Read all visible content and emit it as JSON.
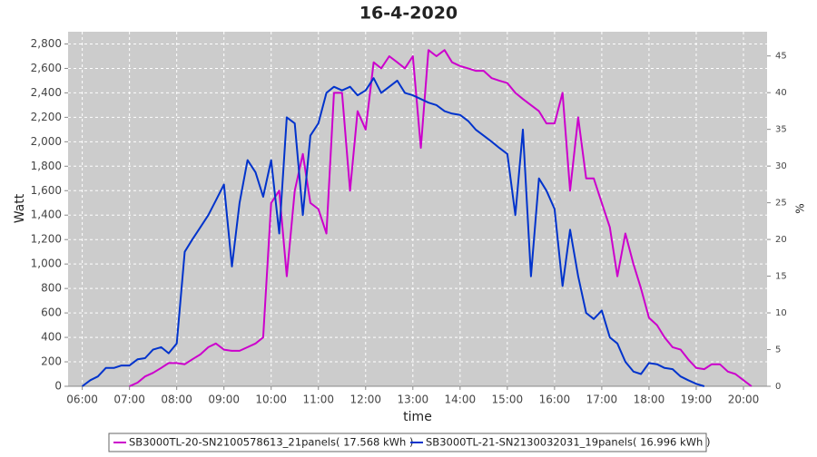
{
  "chart_data": {
    "type": "line",
    "title": "16-4-2020",
    "xlabel": "time",
    "ylabel": "Watt",
    "y2label": "%",
    "x": [
      6,
      6.17,
      6.33,
      6.5,
      6.67,
      6.83,
      7,
      7.17,
      7.33,
      7.5,
      7.67,
      7.83,
      8,
      8.17,
      8.33,
      8.5,
      8.67,
      8.83,
      9,
      9.17,
      9.33,
      9.5,
      9.67,
      9.83,
      10,
      10.17,
      10.33,
      10.5,
      10.67,
      10.83,
      11,
      11.17,
      11.33,
      11.5,
      11.67,
      11.83,
      12,
      12.17,
      12.33,
      12.5,
      12.67,
      12.83,
      13,
      13.17,
      13.33,
      13.5,
      13.67,
      13.83,
      14,
      14.17,
      14.33,
      14.5,
      14.67,
      14.83,
      15,
      15.17,
      15.33,
      15.5,
      15.67,
      15.83,
      16,
      16.17,
      16.33,
      16.5,
      16.67,
      16.83,
      17,
      17.17,
      17.33,
      17.5,
      17.67,
      17.83,
      18,
      18.17,
      18.33,
      18.5,
      18.67,
      18.83,
      19,
      19.17,
      19.33,
      19.5,
      19.67,
      19.83,
      20,
      20.17,
      20.33
    ],
    "series": [
      {
        "name": "SB3000TL-20-SN2100578613_21panels( 17.568 kWh )",
        "color": "#cc00cc",
        "values": [
          null,
          null,
          null,
          null,
          null,
          null,
          0,
          30,
          80,
          110,
          150,
          190,
          190,
          180,
          220,
          260,
          320,
          350,
          300,
          290,
          290,
          320,
          350,
          400,
          1500,
          1600,
          900,
          1600,
          1900,
          1500,
          1450,
          1250,
          2400,
          2400,
          1600,
          2250,
          2100,
          2650,
          2600,
          2700,
          2650,
          2600,
          2700,
          1950,
          2750,
          2700,
          2750,
          2650,
          2620,
          2600,
          2580,
          2580,
          2520,
          2500,
          2480,
          2400,
          2350,
          2300,
          2250,
          2150,
          2150,
          2400,
          1600,
          2200,
          1700,
          1700,
          1500,
          1300,
          900,
          1250,
          1000,
          800,
          560,
          500,
          400,
          320,
          300,
          220,
          150,
          140,
          180,
          180,
          120,
          100,
          50,
          0,
          null
        ]
      },
      {
        "name": "SB3000TL-21-SN2130032031_19panels( 16.996 kWh )",
        "color": "#0033cc",
        "values": [
          0,
          50,
          80,
          150,
          150,
          170,
          170,
          220,
          230,
          300,
          320,
          270,
          350,
          1100,
          1200,
          1300,
          1400,
          1520,
          1650,
          980,
          1500,
          1850,
          1750,
          1550,
          1850,
          1250,
          2200,
          2150,
          1400,
          2050,
          2150,
          2400,
          2450,
          2420,
          2450,
          2380,
          2420,
          2520,
          2400,
          2450,
          2500,
          2400,
          2380,
          2350,
          2320,
          2300,
          2250,
          2230,
          2220,
          2170,
          2100,
          2050,
          2000,
          1950,
          1900,
          1400,
          2100,
          900,
          1700,
          1600,
          1450,
          820,
          1280,
          900,
          600,
          550,
          620,
          400,
          350,
          200,
          120,
          100,
          190,
          180,
          150,
          140,
          80,
          50,
          20,
          0,
          null,
          null,
          null,
          null,
          null,
          null,
          null
        ]
      }
    ],
    "xlim": [
      5.7,
      20.5
    ],
    "xticks": [
      {
        "value": 6,
        "label": "06:00"
      },
      {
        "value": 7,
        "label": "07:00"
      },
      {
        "value": 8,
        "label": "08:00"
      },
      {
        "value": 9,
        "label": "09:00"
      },
      {
        "value": 10,
        "label": "10:00"
      },
      {
        "value": 11,
        "label": "11:00"
      },
      {
        "value": 12,
        "label": "12:00"
      },
      {
        "value": 13,
        "label": "13:00"
      },
      {
        "value": 14,
        "label": "14:00"
      },
      {
        "value": 15,
        "label": "15:00"
      },
      {
        "value": 16,
        "label": "16:00"
      },
      {
        "value": 17,
        "label": "17:00"
      },
      {
        "value": 18,
        "label": "18:00"
      },
      {
        "value": 19,
        "label": "19:00"
      },
      {
        "value": 20,
        "label": "20:00"
      }
    ],
    "ylim": [
      0,
      2900
    ],
    "yticks": [
      0,
      200,
      400,
      600,
      800,
      {
        "value": 1000,
        "label": "1,000"
      },
      {
        "value": 1200,
        "label": "1,200"
      },
      {
        "value": 1400,
        "label": "1,400"
      },
      {
        "value": 1600,
        "label": "1,600"
      },
      {
        "value": 1800,
        "label": "1,800"
      },
      {
        "value": 2000,
        "label": "2,000"
      },
      {
        "value": 2200,
        "label": "2,200"
      },
      {
        "value": 2400,
        "label": "2,400"
      },
      {
        "value": 2600,
        "label": "2,600"
      },
      {
        "value": 2800,
        "label": "2,800"
      }
    ],
    "y2lim": [
      0,
      48.3
    ],
    "y2ticks": [
      0,
      5,
      10,
      15,
      20,
      25,
      30,
      35,
      40,
      45
    ],
    "grid": true,
    "legend": "bottom"
  }
}
